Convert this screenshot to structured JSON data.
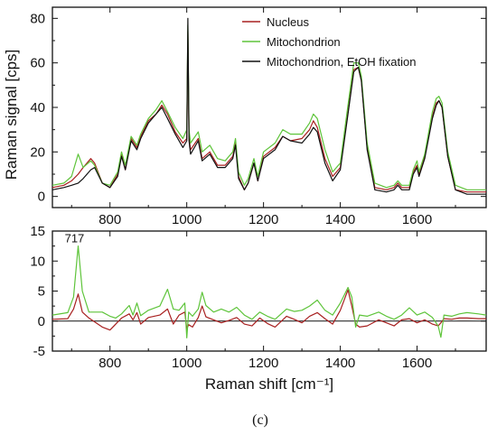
{
  "panel_label": "(c)",
  "chart_data": [
    {
      "type": "line",
      "title": "",
      "xlabel": "",
      "ylabel": "Raman signal [cps]",
      "xlim": [
        650,
        1780
      ],
      "ylim": [
        -5,
        85
      ],
      "xticks": [
        800,
        1000,
        1200,
        1400,
        1600
      ],
      "yticks": [
        0,
        20,
        40,
        60,
        80
      ],
      "legend_position": "top-right",
      "series": [
        {
          "name": "Nucleus",
          "color": "#a82020",
          "x": [
            650,
            680,
            700,
            717,
            730,
            750,
            760,
            780,
            800,
            820,
            830,
            840,
            855,
            870,
            880,
            900,
            920,
            935,
            950,
            970,
            990,
            1000,
            1003,
            1006,
            1010,
            1030,
            1040,
            1060,
            1080,
            1100,
            1120,
            1127,
            1135,
            1150,
            1160,
            1175,
            1185,
            1200,
            1230,
            1250,
            1270,
            1300,
            1320,
            1330,
            1340,
            1360,
            1380,
            1400,
            1420,
            1435,
            1447,
            1455,
            1470,
            1490,
            1520,
            1540,
            1550,
            1560,
            1580,
            1590,
            1600,
            1605,
            1620,
            1640,
            1650,
            1657,
            1665,
            1680,
            1700,
            1730,
            1780
          ],
          "y": [
            4,
            5,
            7,
            10,
            13,
            17,
            15,
            6,
            4,
            10,
            19,
            12,
            26,
            22,
            27,
            34,
            37,
            41,
            37,
            29,
            24,
            26,
            74,
            26,
            21,
            26,
            17,
            20,
            14,
            14,
            18,
            24,
            9,
            3,
            6,
            15,
            7,
            18,
            22,
            27,
            25,
            26,
            30,
            34,
            31,
            17,
            9,
            13,
            38,
            57,
            58,
            52,
            22,
            4,
            3,
            4,
            6,
            4,
            4,
            11,
            14,
            10,
            18,
            36,
            42,
            43,
            40,
            18,
            3,
            2,
            2
          ]
        },
        {
          "name": "Mitochondrion",
          "color": "#5ec43a",
          "x": [
            650,
            680,
            700,
            717,
            730,
            750,
            760,
            780,
            800,
            820,
            830,
            840,
            855,
            870,
            880,
            900,
            920,
            935,
            950,
            970,
            990,
            1000,
            1003,
            1006,
            1010,
            1030,
            1040,
            1060,
            1080,
            1100,
            1120,
            1127,
            1135,
            1150,
            1160,
            1175,
            1185,
            1200,
            1230,
            1250,
            1270,
            1300,
            1320,
            1330,
            1340,
            1360,
            1380,
            1400,
            1420,
            1435,
            1447,
            1455,
            1470,
            1490,
            1520,
            1540,
            1550,
            1560,
            1580,
            1590,
            1600,
            1605,
            1620,
            1640,
            1650,
            1657,
            1665,
            1680,
            1700,
            1730,
            1780
          ],
          "y": [
            5,
            6,
            9,
            19,
            13,
            16,
            14,
            6,
            5,
            11,
            20,
            14,
            27,
            23,
            28,
            35,
            39,
            43,
            38,
            31,
            26,
            30,
            77,
            30,
            24,
            29,
            20,
            23,
            17,
            16,
            20,
            26,
            11,
            5,
            8,
            17,
            9,
            20,
            24,
            30,
            28,
            28,
            33,
            37,
            35,
            21,
            11,
            15,
            41,
            60,
            60,
            54,
            24,
            6,
            4,
            5,
            7,
            5,
            5,
            12,
            16,
            11,
            19,
            38,
            44,
            45,
            42,
            20,
            5,
            3,
            3
          ]
        },
        {
          "name": "Mitochondrion, EtOH fixation",
          "color": "#111111",
          "x": [
            650,
            680,
            700,
            717,
            730,
            750,
            760,
            780,
            800,
            820,
            830,
            840,
            855,
            870,
            880,
            900,
            920,
            935,
            950,
            970,
            990,
            1000,
            1003,
            1006,
            1010,
            1030,
            1040,
            1060,
            1080,
            1100,
            1120,
            1127,
            1135,
            1150,
            1160,
            1175,
            1185,
            1200,
            1230,
            1250,
            1270,
            1300,
            1320,
            1330,
            1340,
            1360,
            1380,
            1400,
            1420,
            1435,
            1447,
            1455,
            1470,
            1490,
            1520,
            1540,
            1550,
            1560,
            1580,
            1590,
            1600,
            1605,
            1620,
            1640,
            1650,
            1657,
            1665,
            1680,
            1700,
            1730,
            1780
          ],
          "y": [
            3,
            4,
            5,
            6,
            8,
            12,
            13,
            6,
            4,
            9,
            18,
            12,
            25,
            21,
            26,
            33,
            37,
            40,
            35,
            28,
            22,
            25,
            80,
            25,
            19,
            25,
            16,
            19,
            13,
            13,
            17,
            23,
            8,
            3,
            6,
            15,
            7,
            17,
            21,
            27,
            25,
            24,
            28,
            31,
            29,
            15,
            7,
            12,
            37,
            56,
            58,
            52,
            21,
            3,
            2,
            3,
            5,
            3,
            3,
            10,
            13,
            9,
            17,
            35,
            41,
            43,
            40,
            18,
            3,
            1,
            1
          ]
        }
      ]
    },
    {
      "type": "line",
      "title": "",
      "xlabel": "Raman shift [cm⁻¹]",
      "ylabel": "",
      "xlim": [
        650,
        1780
      ],
      "ylim": [
        -5,
        15
      ],
      "xticks": [
        800,
        1000,
        1200,
        1400,
        1600
      ],
      "yticks": [
        -5,
        0,
        5,
        10,
        15
      ],
      "annotations": [
        {
          "text": "717",
          "x": 717,
          "y": 12.5
        }
      ],
      "series": [
        {
          "name": "Nucleus",
          "color": "#a82020",
          "x": [
            650,
            690,
            705,
            717,
            728,
            745,
            780,
            800,
            815,
            830,
            850,
            860,
            870,
            880,
            900,
            930,
            950,
            965,
            980,
            995,
            1000,
            1005,
            1015,
            1030,
            1040,
            1050,
            1070,
            1090,
            1110,
            1130,
            1150,
            1170,
            1190,
            1210,
            1230,
            1260,
            1280,
            1300,
            1320,
            1340,
            1360,
            1380,
            1400,
            1420,
            1430,
            1440,
            1450,
            1470,
            1500,
            1520,
            1540,
            1560,
            1580,
            1600,
            1620,
            1640,
            1655,
            1662,
            1670,
            1690,
            1710,
            1730,
            1760,
            1780
          ],
          "y": [
            0.3,
            0.4,
            2,
            4.5,
            1.5,
            0.5,
            -1,
            -1.5,
            -0.5,
            0.5,
            1.2,
            0.2,
            1.4,
            -0.5,
            0.6,
            1,
            2,
            -0.5,
            1,
            1.5,
            -1.3,
            -0.6,
            -1,
            0.6,
            2.5,
            0.7,
            0.2,
            -0.3,
            0.1,
            0.6,
            -0.5,
            -0.8,
            0.5,
            -0.4,
            -1,
            0.8,
            0.3,
            -0.3,
            0.8,
            1.4,
            0.4,
            -0.5,
            1.8,
            5.2,
            2.5,
            -0.5,
            -1,
            -0.8,
            0.2,
            -0.3,
            -0.8,
            0.2,
            0.4,
            -0.3,
            0.2,
            -0.5,
            -0.8,
            -0.3,
            0.4,
            0.3,
            0.5,
            0.5,
            0.4,
            0.4
          ]
        },
        {
          "name": "Mitochondrion",
          "color": "#5ec43a",
          "x": [
            650,
            690,
            705,
            717,
            728,
            745,
            780,
            800,
            815,
            830,
            850,
            860,
            870,
            880,
            900,
            930,
            950,
            965,
            980,
            995,
            1000,
            1005,
            1015,
            1030,
            1040,
            1050,
            1070,
            1090,
            1110,
            1130,
            1150,
            1170,
            1190,
            1210,
            1230,
            1260,
            1280,
            1300,
            1320,
            1340,
            1360,
            1380,
            1400,
            1420,
            1430,
            1440,
            1450,
            1470,
            1500,
            1520,
            1540,
            1560,
            1580,
            1600,
            1620,
            1640,
            1655,
            1662,
            1670,
            1690,
            1710,
            1730,
            1760,
            1780
          ],
          "y": [
            1,
            1.4,
            4,
            12.5,
            5,
            1.5,
            1.5,
            0.8,
            0.5,
            1.2,
            2.6,
            1,
            3,
            0.9,
            1.8,
            2.5,
            5.3,
            2,
            1.8,
            3,
            -2.8,
            1.5,
            0.8,
            2,
            4.8,
            2.6,
            1.5,
            2,
            1.5,
            2.3,
            1,
            0.3,
            1.5,
            0.8,
            0.3,
            2,
            1.6,
            1.8,
            2.5,
            3.5,
            1.8,
            1,
            3,
            5.6,
            4,
            -1,
            1,
            0.8,
            1.5,
            0.8,
            0.3,
            1,
            2.2,
            1,
            1.5,
            0.6,
            -0.8,
            -2.7,
            1,
            0.8,
            1.2,
            1.4,
            1.2,
            1
          ]
        }
      ]
    }
  ]
}
